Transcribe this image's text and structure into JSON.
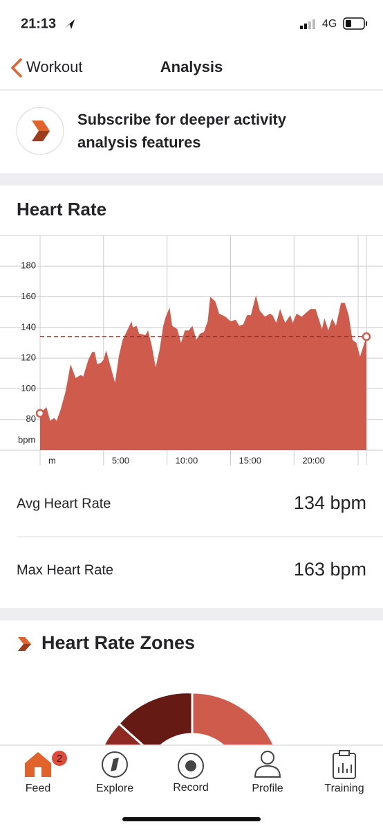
{
  "status_bar": {
    "time": "21:13",
    "network": "4G"
  },
  "nav": {
    "back": "Workout",
    "title": "Analysis"
  },
  "banner": {
    "lines": [
      "Subscribe for deeper activity",
      "analysis features"
    ]
  },
  "heart_rate": {
    "title": "Heart Rate",
    "chart": {
      "type": "area",
      "x": [
        0,
        0.5,
        0.8,
        1.1,
        1.3,
        1.6,
        2.0,
        2.4,
        2.8,
        3.2,
        3.4,
        3.8,
        4.1,
        4.3,
        4.5,
        4.8,
        5.0,
        5.2,
        5.5,
        5.9,
        6.2,
        6.5,
        6.8,
        7.2,
        7.3,
        7.6,
        7.8,
        8.3,
        8.5,
        8.8,
        9.1,
        9.4,
        9.7,
        9.9,
        10.2,
        10.4,
        10.8,
        11.1,
        11.4,
        11.7,
        12.0,
        12.3,
        12.6,
        12.9,
        13.2,
        13.4,
        13.8,
        14.1,
        14.6,
        15.0,
        15.4,
        15.7,
        16.0,
        16.3,
        16.6,
        17.0,
        17.3,
        17.7,
        18.1,
        18.3,
        18.6,
        18.9,
        19.3,
        19.7,
        19.9,
        20.2,
        20.6,
        21.0,
        21.3,
        21.7,
        22.2,
        22.4,
        22.7,
        23.0,
        23.3,
        23.7,
        24.0,
        24.3,
        24.6,
        24.9,
        25.2,
        25.7
      ],
      "values": [
        84,
        88,
        79,
        81,
        79,
        86,
        98,
        116,
        107,
        109,
        108,
        119,
        124,
        124,
        116,
        117,
        119,
        125,
        116,
        104,
        121,
        132,
        137,
        144,
        140,
        141,
        136,
        135,
        138,
        128,
        114,
        125,
        141,
        147,
        153,
        141,
        139,
        130,
        138,
        138,
        141,
        132,
        136,
        137,
        144,
        160,
        157,
        149,
        147,
        144,
        145,
        141,
        142,
        148,
        148,
        161,
        151,
        147,
        149,
        148,
        143,
        152,
        143,
        148,
        143,
        149,
        147,
        150,
        152,
        152,
        139,
        146,
        138,
        146,
        141,
        156,
        156,
        148,
        132,
        130,
        121,
        134
      ],
      "color": "#cf5b4c",
      "xlim": [
        0,
        25.7
      ],
      "ylim": [
        60,
        200
      ],
      "yticks": [
        80,
        100,
        120,
        140,
        160,
        180
      ],
      "xticks": [
        {
          "value": 0,
          "label": "m"
        },
        {
          "value": 5,
          "label": "5:00"
        },
        {
          "value": 10,
          "label": "10:00"
        },
        {
          "value": 15,
          "label": "15:00"
        },
        {
          "value": 20,
          "label": "20:00"
        }
      ],
      "y_unit": "bpm",
      "average": 134,
      "grid": true
    },
    "stats": [
      {
        "label": "Avg Heart Rate",
        "value": "134 bpm"
      },
      {
        "label": "Max Heart Rate",
        "value": "163 bpm"
      }
    ]
  },
  "zones": {
    "title": "Heart Rate Zones"
  },
  "tab_bar": {
    "items": [
      {
        "label": "Feed",
        "badge": 2
      },
      {
        "label": "Explore"
      },
      {
        "label": "Record"
      },
      {
        "label": "Profile"
      },
      {
        "label": "Training"
      }
    ]
  }
}
